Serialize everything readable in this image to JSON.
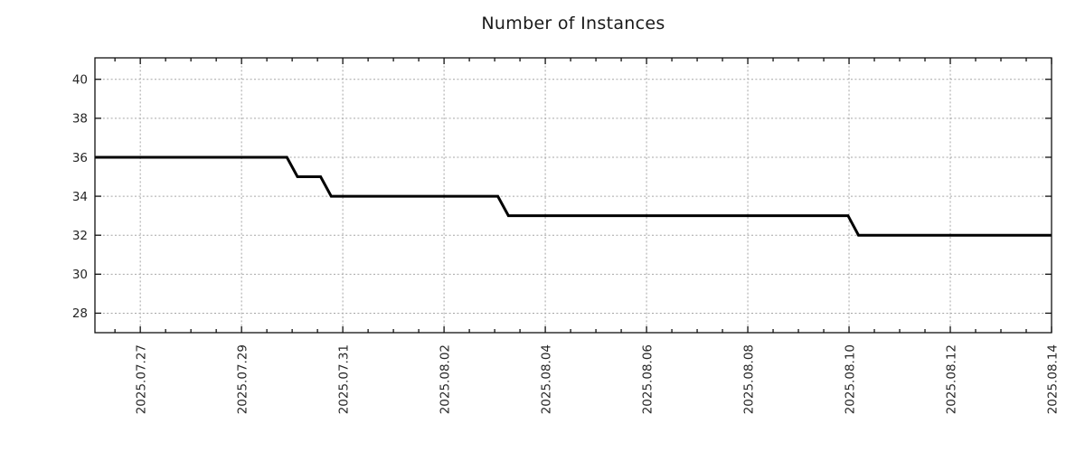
{
  "chart_data": {
    "type": "line",
    "title": "Number of Instances",
    "x_axis": {
      "range": [
        "2025-07-26T02:30",
        "2025-08-14T00:00"
      ],
      "ticks": [
        {
          "date": "2025-07-27",
          "label": "2025.07.27"
        },
        {
          "date": "2025-07-29",
          "label": "2025.07.29"
        },
        {
          "date": "2025-07-31",
          "label": "2025.07.31"
        },
        {
          "date": "2025-08-02",
          "label": "2025.08.02"
        },
        {
          "date": "2025-08-04",
          "label": "2025.08.04"
        },
        {
          "date": "2025-08-06",
          "label": "2025.08.06"
        },
        {
          "date": "2025-08-08",
          "label": "2025.08.08"
        },
        {
          "date": "2025-08-10",
          "label": "2025.08.10"
        },
        {
          "date": "2025-08-12",
          "label": "2025.08.12"
        },
        {
          "date": "2025-08-14",
          "label": "2025.08.14"
        }
      ],
      "minor_tick_interval_days": 0.5,
      "tick_label_rotation_deg": 90
    },
    "y_axis": {
      "range": [
        27.0,
        41.1
      ],
      "ticks": [
        {
          "value": 28,
          "label": "28"
        },
        {
          "value": 30,
          "label": "30"
        },
        {
          "value": 32,
          "label": "32"
        },
        {
          "value": 34,
          "label": "34"
        },
        {
          "value": 36,
          "label": "36"
        },
        {
          "value": 38,
          "label": "38"
        },
        {
          "value": 40,
          "label": "40"
        }
      ]
    },
    "grid": {
      "visible": true,
      "style": "dashed"
    },
    "legend": {
      "visible": false
    },
    "series": [
      {
        "name": "instances",
        "points": [
          [
            "2025-07-26T02:30",
            36
          ],
          [
            "2025-07-29T21:30",
            36
          ],
          [
            "2025-07-30T02:30",
            35
          ],
          [
            "2025-07-30T13:30",
            35
          ],
          [
            "2025-07-30T18:30",
            34
          ],
          [
            "2025-08-03T01:30",
            34
          ],
          [
            "2025-08-03T06:30",
            33
          ],
          [
            "2025-08-09T23:30",
            33
          ],
          [
            "2025-08-10T04:30",
            32
          ],
          [
            "2025-08-14T00:00",
            32
          ]
        ]
      }
    ],
    "colors": {
      "line": "#000000",
      "grid": "#a6a6a6",
      "border": "#111111",
      "text": "#262626",
      "background": "#ffffff"
    }
  }
}
